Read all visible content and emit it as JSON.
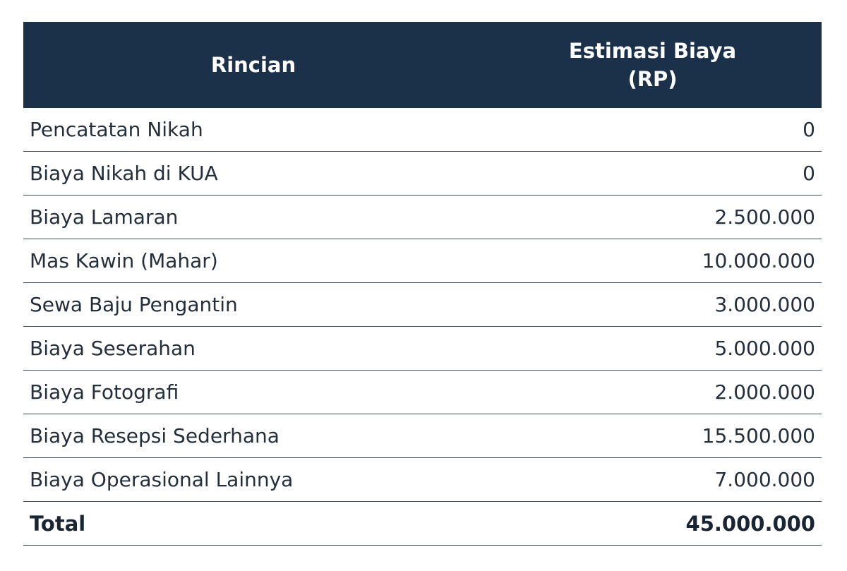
{
  "table": {
    "headers": {
      "col1": "Rincian",
      "col2_line1": "Estimasi Biaya",
      "col2_line2": "(RP)"
    },
    "rows": [
      {
        "label": "Pencatatan Nikah",
        "amount": "0"
      },
      {
        "label": "Biaya Nikah di KUA",
        "amount": "0"
      },
      {
        "label": "Biaya Lamaran",
        "amount": "2.500.000"
      },
      {
        "label": "Mas Kawin (Mahar)",
        "amount": "10.000.000"
      },
      {
        "label": "Sewa Baju Pengantin",
        "amount": "3.000.000"
      },
      {
        "label": "Biaya Seserahan",
        "amount": "5.000.000"
      },
      {
        "label": "Biaya Fotografi",
        "amount": "2.000.000"
      },
      {
        "label": "Biaya Resepsi Sederhana",
        "amount": "15.500.000"
      },
      {
        "label": "Biaya Operasional Lainnya",
        "amount": "7.000.000"
      }
    ],
    "total": {
      "label": "Total",
      "amount": "45.000.000"
    }
  },
  "colors": {
    "header_bg": "#1b3049",
    "header_text": "#ffffff",
    "row_border": "#3e4a57",
    "text": "#242f3b"
  }
}
